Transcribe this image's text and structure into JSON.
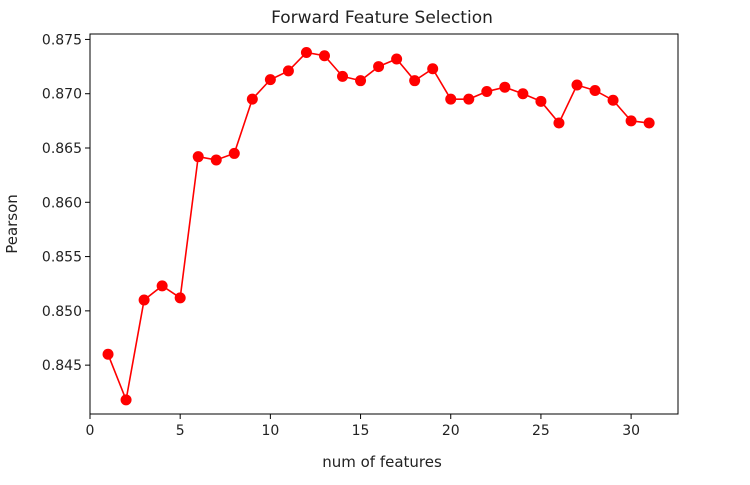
{
  "chart_data": {
    "type": "line",
    "title": "Forward Feature Selection",
    "xlabel": "num of features",
    "ylabel": "Pearson",
    "xlim": [
      0.0,
      32.6
    ],
    "ylim": [
      0.8405,
      0.8755
    ],
    "xticks": [
      0,
      5,
      10,
      15,
      20,
      25,
      30
    ],
    "yticks": [
      0.845,
      0.85,
      0.855,
      0.86,
      0.865,
      0.87,
      0.875
    ],
    "ytick_labels": [
      "0.845",
      "0.850",
      "0.855",
      "0.860",
      "0.865",
      "0.870",
      "0.875"
    ],
    "grid": false,
    "legend": "none",
    "color": "#ff0000",
    "series": [
      {
        "x": [
          1,
          2,
          3,
          4,
          5,
          6,
          7,
          8,
          9,
          10,
          11,
          12,
          13,
          14,
          15,
          16,
          17,
          18,
          19,
          20,
          21,
          22,
          23,
          24,
          25,
          26,
          27,
          28,
          29,
          30,
          31
        ],
        "y": [
          0.846,
          0.8418,
          0.851,
          0.8523,
          0.8512,
          0.8642,
          0.8639,
          0.8645,
          0.8695,
          0.8713,
          0.8721,
          0.8738,
          0.8735,
          0.8716,
          0.8712,
          0.8725,
          0.8732,
          0.8712,
          0.8723,
          0.8695,
          0.8695,
          0.8702,
          0.8706,
          0.87,
          0.8693,
          0.8673,
          0.8708,
          0.8703,
          0.8694,
          0.8675,
          0.8673
        ]
      }
    ]
  }
}
